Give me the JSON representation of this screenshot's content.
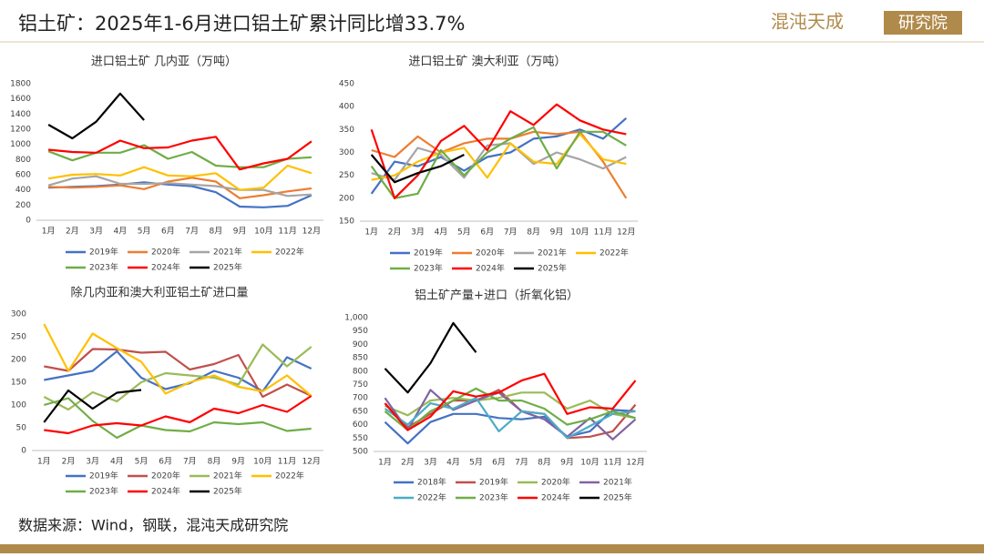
{
  "header": {
    "title": "铝土矿：2025年1-6月进口铝土矿累计同比增33.7%",
    "logo_name": "混沌天成",
    "logo_unit": "研究院"
  },
  "footer": {
    "source": "数据来源：Wind，钢联，混沌天成研究院"
  },
  "chart_data": [
    {
      "type": "line",
      "title": "进口铝土矿 几内亚（万吨）",
      "categories": [
        "1月",
        "2月",
        "3月",
        "4月",
        "5月",
        "6月",
        "7月",
        "8月",
        "9月",
        "10月",
        "11月",
        "12月"
      ],
      "ylim": [
        0,
        1800
      ],
      "yticks": [
        0,
        200,
        400,
        600,
        800,
        1000,
        1200,
        1400,
        1600,
        1800
      ],
      "grid": false,
      "legend": "bottom",
      "series": [
        {
          "name": "2019年",
          "color": "#4472c4",
          "values": [
            430,
            440,
            450,
            470,
            500,
            470,
            450,
            370,
            180,
            170,
            190,
            330
          ]
        },
        {
          "name": "2020年",
          "color": "#ed7d31",
          "values": [
            440,
            430,
            440,
            460,
            410,
            510,
            560,
            510,
            290,
            330,
            380,
            420
          ]
        },
        {
          "name": "2021年",
          "color": "#a5a5a5",
          "values": [
            460,
            550,
            580,
            480,
            480,
            490,
            470,
            450,
            400,
            400,
            320,
            340
          ]
        },
        {
          "name": "2022年",
          "color": "#ffc000",
          "values": [
            550,
            600,
            610,
            590,
            700,
            590,
            580,
            620,
            400,
            430,
            720,
            620
          ]
        },
        {
          "name": "2023年",
          "color": "#70ad47",
          "values": [
            910,
            790,
            890,
            890,
            990,
            810,
            900,
            720,
            700,
            700,
            810,
            830
          ]
        },
        {
          "name": "2024年",
          "color": "#ff0000",
          "values": [
            930,
            900,
            890,
            1050,
            950,
            960,
            1050,
            1100,
            670,
            750,
            810,
            1040
          ]
        },
        {
          "name": "2025年",
          "color": "#000000",
          "values": [
            1260,
            1080,
            1300,
            1670,
            1320,
            null,
            null,
            null,
            null,
            null,
            null,
            null
          ]
        }
      ]
    },
    {
      "type": "line",
      "title": "进口铝土矿 澳大利亚（万吨）",
      "categories": [
        "1月",
        "2月",
        "3月",
        "4月",
        "5月",
        "6月",
        "7月",
        "8月",
        "9月",
        "10月",
        "11月",
        "12月"
      ],
      "ylim": [
        150,
        450
      ],
      "yticks": [
        150,
        200,
        250,
        300,
        350,
        400,
        450
      ],
      "grid": false,
      "legend": "bottom",
      "series": [
        {
          "name": "2019年",
          "color": "#4472c4",
          "values": [
            210,
            280,
            270,
            290,
            260,
            290,
            300,
            330,
            335,
            350,
            330,
            375
          ]
        },
        {
          "name": "2020年",
          "color": "#ed7d31",
          "values": [
            305,
            290,
            335,
            300,
            320,
            330,
            330,
            345,
            340,
            345,
            280,
            200
          ]
        },
        {
          "name": "2021年",
          "color": "#a5a5a5",
          "values": [
            255,
            240,
            310,
            295,
            245,
            315,
            320,
            275,
            300,
            285,
            265,
            290
          ]
        },
        {
          "name": "2022年",
          "color": "#ffc000",
          "values": [
            240,
            250,
            280,
            300,
            310,
            245,
            320,
            280,
            275,
            340,
            285,
            275
          ]
        },
        {
          "name": "2023年",
          "color": "#70ad47",
          "values": [
            270,
            200,
            210,
            305,
            250,
            300,
            330,
            355,
            265,
            345,
            345,
            315
          ]
        },
        {
          "name": "2024年",
          "color": "#ff0000",
          "values": [
            350,
            200,
            250,
            325,
            358,
            305,
            390,
            360,
            405,
            370,
            350,
            340
          ]
        },
        {
          "name": "2025年",
          "color": "#000000",
          "values": [
            295,
            235,
            255,
            270,
            295,
            null,
            null,
            null,
            null,
            null,
            null,
            null
          ]
        }
      ]
    },
    {
      "type": "line",
      "title": "除几内亚和澳大利亚铝土矿进口量",
      "categories": [
        "1月",
        "2月",
        "3月",
        "4月",
        "5月",
        "6月",
        "7月",
        "8月",
        "9月",
        "10月",
        "11月",
        "12月"
      ],
      "ylim": [
        0,
        300
      ],
      "yticks": [
        0,
        50,
        100,
        150,
        200,
        250,
        300
      ],
      "grid": false,
      "legend": "bottom",
      "series": [
        {
          "name": "2019年",
          "color": "#4472c4",
          "values": [
            155,
            165,
            175,
            218,
            160,
            135,
            148,
            175,
            160,
            130,
            205,
            180
          ]
        },
        {
          "name": "2020年",
          "color": "#c0504d",
          "values": [
            185,
            175,
            223,
            222,
            215,
            217,
            178,
            190,
            210,
            118,
            145,
            120
          ]
        },
        {
          "name": "2021年",
          "color": "#9bbb59",
          "values": [
            118,
            90,
            128,
            108,
            150,
            170,
            165,
            160,
            145,
            233,
            185,
            228
          ]
        },
        {
          "name": "2022年",
          "color": "#ffc000",
          "values": [
            278,
            175,
            257,
            225,
            195,
            125,
            150,
            165,
            140,
            130,
            165,
            120
          ]
        },
        {
          "name": "2023年",
          "color": "#70ad47",
          "values": [
            100,
            115,
            65,
            28,
            55,
            45,
            42,
            62,
            58,
            62,
            43,
            48
          ]
        },
        {
          "name": "2024年",
          "color": "#ff0000",
          "values": [
            45,
            38,
            55,
            60,
            55,
            75,
            62,
            92,
            82,
            100,
            85,
            120
          ]
        },
        {
          "name": "2025年",
          "color": "#000000",
          "values": [
            62,
            132,
            92,
            127,
            133,
            null,
            null,
            null,
            null,
            null,
            null,
            null
          ]
        }
      ]
    },
    {
      "type": "line",
      "title": "铝土矿产量+进口（折氧化铝）",
      "categories": [
        "1月",
        "2月",
        "3月",
        "4月",
        "5月",
        "6月",
        "7月",
        "8月",
        "9月",
        "10月",
        "11月",
        "12月"
      ],
      "ylim": [
        500,
        1000
      ],
      "yticks": [
        500,
        550,
        600,
        650,
        700,
        750,
        800,
        850,
        900,
        950,
        {
          "value": 1000,
          "label": "1,000"
        }
      ],
      "grid": false,
      "legend": "bottom",
      "series": [
        {
          "name": "2018年",
          "color": "#4472c4",
          "values": [
            610,
            530,
            610,
            640,
            640,
            625,
            620,
            630,
            555,
            575,
            655,
            650
          ]
        },
        {
          "name": "2019年",
          "color": "#c0504d",
          "values": [
            680,
            590,
            640,
            690,
            690,
            730,
            650,
            640,
            550,
            555,
            575,
            675
          ]
        },
        {
          "name": "2020年",
          "color": "#9bbb59",
          "values": [
            670,
            635,
            690,
            700,
            690,
            700,
            720,
            720,
            660,
            690,
            640,
            625
          ]
        },
        {
          "name": "2021年",
          "color": "#8064a2",
          "values": [
            700,
            580,
            730,
            655,
            690,
            720,
            650,
            620,
            555,
            625,
            545,
            620
          ]
        },
        {
          "name": "2022年",
          "color": "#4bacc6",
          "values": [
            660,
            600,
            680,
            660,
            700,
            575,
            650,
            640,
            550,
            595,
            640,
            650
          ]
        },
        {
          "name": "2023年",
          "color": "#70ad47",
          "values": [
            650,
            580,
            650,
            690,
            735,
            690,
            690,
            660,
            600,
            620,
            650,
            625
          ]
        },
        {
          "name": "2024年",
          "color": "#ff0000",
          "values": [
            680,
            580,
            630,
            725,
            705,
            720,
            765,
            790,
            640,
            665,
            660,
            765
          ]
        },
        {
          "name": "2025年",
          "color": "#000000",
          "values": [
            810,
            720,
            830,
            980,
            870,
            null,
            null,
            null,
            null,
            null,
            null,
            null
          ]
        }
      ]
    }
  ]
}
